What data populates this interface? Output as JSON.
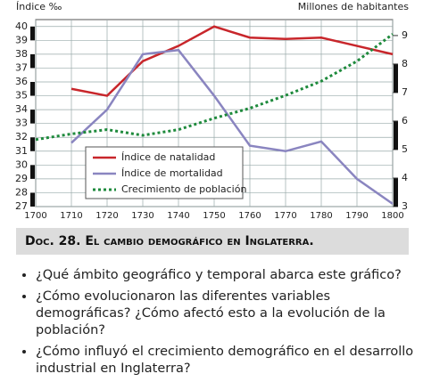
{
  "chart_data": {
    "type": "line",
    "y_label": "Índice ‰",
    "y2_label": "Millones de habitantes",
    "x": [
      1700,
      1710,
      1720,
      1730,
      1740,
      1750,
      1760,
      1770,
      1780,
      1790,
      1800
    ],
    "xlim": [
      1700,
      1800
    ],
    "xticks": [
      1700,
      1710,
      1720,
      1730,
      1740,
      1750,
      1760,
      1770,
      1780,
      1790,
      1800
    ],
    "ylim": [
      27,
      40.5
    ],
    "yticks": [
      27,
      28,
      29,
      30,
      31,
      32,
      33,
      34,
      35,
      36,
      37,
      38,
      39,
      40
    ],
    "y2lim": [
      3,
      9.56
    ],
    "y2ticks": [
      3,
      4,
      5,
      6,
      7,
      8,
      9
    ],
    "grid": true,
    "series": [
      {
        "name": "Índice de natalidad",
        "color": "#c8262b",
        "style": "solid",
        "values": [
          null,
          35.5,
          35,
          37.5,
          38.6,
          40,
          39.2,
          39.1,
          39.2,
          38.6,
          38
        ]
      },
      {
        "name": "Índice de mortalidad",
        "color": "#8a85c0",
        "style": "solid",
        "values": [
          null,
          31.6,
          34,
          38,
          38.3,
          35,
          31.4,
          31,
          31.7,
          29,
          27.2
        ]
      },
      {
        "name": "Crecimiento de población",
        "color": "#1e8a3c",
        "style": "dotted",
        "axis": "y2",
        "values": [
          5.35,
          5.55,
          5.7,
          5.5,
          5.7,
          6.1,
          6.45,
          6.9,
          7.4,
          8.1,
          9.05
        ]
      }
    ]
  },
  "caption": "Doc. 28. El cambio demográfico en Inglaterra.",
  "questions": [
    "¿Qué ámbito geográfico y temporal abarca este gráfico?",
    "¿Cómo evolucionaron las diferentes variables demográficas? ¿Cómo afectó esto a la evolución de la población?",
    "¿Cómo influyó el crecimiento demográfico en el desarrollo industrial en Inglaterra?"
  ]
}
